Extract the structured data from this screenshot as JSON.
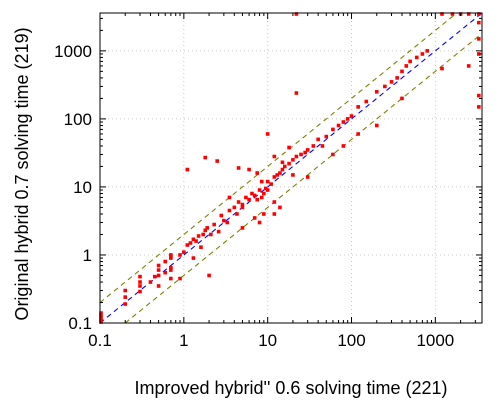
{
  "chart_data": {
    "type": "scatter",
    "xlabel": "Improved hybrid'' 0.6 solving time (221)",
    "ylabel": "Original hybrid 0.7 solving time (219)",
    "xscale": "log",
    "yscale": "log",
    "xlim": [
      0.1,
      3600
    ],
    "ylim": [
      0.1,
      3600
    ],
    "xticks": [
      0.1,
      1,
      10,
      100,
      1000
    ],
    "yticks": [
      0.1,
      1,
      10,
      100,
      1000
    ],
    "xtick_labels": [
      "0.1",
      "1",
      "10",
      "100",
      "1000"
    ],
    "ytick_labels": [
      "0.1",
      "1",
      "10",
      "100",
      "1000"
    ],
    "grid": true,
    "legend": "none",
    "colors": {
      "points": "#ff0000",
      "diagonal": "#0000ff",
      "band": "#808000",
      "grid": "#c8c8c8",
      "frame": "#000000"
    },
    "reference_lines": [
      {
        "style": "dashed",
        "color": "blue",
        "factor": 1
      },
      {
        "style": "dashed",
        "color": "olive",
        "factor": 2
      },
      {
        "style": "dashed",
        "color": "olive",
        "factor": 0.5
      }
    ],
    "points": [
      [
        0.1,
        0.1
      ],
      [
        0.1,
        0.11
      ],
      [
        0.1,
        0.12
      ],
      [
        0.1,
        0.13
      ],
      [
        0.1,
        0.14
      ],
      [
        0.2,
        0.19
      ],
      [
        0.2,
        0.24
      ],
      [
        0.2,
        0.3
      ],
      [
        0.3,
        0.29
      ],
      [
        0.3,
        0.35
      ],
      [
        0.3,
        0.4
      ],
      [
        0.3,
        0.48
      ],
      [
        0.4,
        0.4
      ],
      [
        0.45,
        0.48
      ],
      [
        0.5,
        0.5
      ],
      [
        0.5,
        0.6
      ],
      [
        0.5,
        0.7
      ],
      [
        0.6,
        0.55
      ],
      [
        0.6,
        0.8
      ],
      [
        0.7,
        0.6
      ],
      [
        0.7,
        0.65
      ],
      [
        0.7,
        0.9
      ],
      [
        0.7,
        1.0
      ],
      [
        0.7,
        0.95
      ],
      [
        0.9,
        1.0
      ],
      [
        1.0,
        1.1
      ],
      [
        1.1,
        1.4
      ],
      [
        1.2,
        1.5
      ],
      [
        1.3,
        1.7
      ],
      [
        1.4,
        1.6
      ],
      [
        1.5,
        1.9
      ],
      [
        1.6,
        1.3
      ],
      [
        1.7,
        2.0
      ],
      [
        1.8,
        2.3
      ],
      [
        1.9,
        2.5
      ],
      [
        2.0,
        0.5
      ],
      [
        2.1,
        2.0
      ],
      [
        2.3,
        2.8
      ],
      [
        2.6,
        2.2
      ],
      [
        2.8,
        3.8
      ],
      [
        3.0,
        3.2
      ],
      [
        3.3,
        3.0
      ],
      [
        3.5,
        4.5
      ],
      [
        4.0,
        5.0
      ],
      [
        4.3,
        4.0
      ],
      [
        4.5,
        6.0
      ],
      [
        5.0,
        5.5
      ],
      [
        5.5,
        7.0
      ],
      [
        6.0,
        6.5
      ],
      [
        6.5,
        8.0
      ],
      [
        7.0,
        7.5
      ],
      [
        7.5,
        6.5
      ],
      [
        8.0,
        9.0
      ],
      [
        8.5,
        7.0
      ],
      [
        9.0,
        8.0
      ],
      [
        9.5,
        9.5
      ],
      [
        10,
        9
      ],
      [
        10,
        12
      ],
      [
        11,
        11
      ],
      [
        12,
        14
      ],
      [
        13,
        15
      ],
      [
        14,
        16
      ],
      [
        15,
        18
      ],
      [
        16,
        20
      ],
      [
        18,
        22
      ],
      [
        20,
        25
      ],
      [
        22,
        28
      ],
      [
        25,
        30
      ],
      [
        28,
        32
      ],
      [
        30,
        35
      ],
      [
        35,
        40
      ],
      [
        40,
        50
      ],
      [
        45,
        40
      ],
      [
        50,
        55
      ],
      [
        60,
        70
      ],
      [
        70,
        80
      ],
      [
        80,
        90
      ],
      [
        90,
        100
      ],
      [
        100,
        110
      ],
      [
        120,
        150
      ],
      [
        150,
        180
      ],
      [
        200,
        250
      ],
      [
        250,
        300
      ],
      [
        300,
        350
      ],
      [
        350,
        400
      ],
      [
        400,
        500
      ],
      [
        450,
        600
      ],
      [
        500,
        700
      ],
      [
        600,
        800
      ],
      [
        700,
        900
      ],
      [
        800,
        1000
      ],
      [
        1.1,
        18
      ],
      [
        1.8,
        27
      ],
      [
        2.5,
        24
      ],
      [
        3.5,
        7
      ],
      [
        4.5,
        19
      ],
      [
        5,
        5
      ],
      [
        6,
        18
      ],
      [
        7.5,
        16
      ],
      [
        8.5,
        12
      ],
      [
        10,
        60
      ],
      [
        12,
        28
      ],
      [
        15,
        23
      ],
      [
        18,
        38
      ],
      [
        20,
        15
      ],
      [
        22,
        240
      ],
      [
        14,
        5
      ],
      [
        12,
        6
      ],
      [
        9,
        4
      ],
      [
        0.9,
        0.45
      ],
      [
        0.7,
        0.45
      ],
      [
        0.5,
        0.35
      ],
      [
        1.3,
        0.9
      ],
      [
        5,
        2.5
      ],
      [
        7,
        3.5
      ],
      [
        8,
        3
      ],
      [
        12,
        4
      ],
      [
        30,
        14
      ],
      [
        60,
        30
      ],
      [
        80,
        40
      ],
      [
        120,
        60
      ],
      [
        200,
        80
      ],
      [
        400,
        200
      ],
      [
        1200,
        550
      ],
      [
        2500,
        600
      ],
      [
        3300,
        150
      ],
      [
        3300,
        220
      ],
      [
        22,
        3600
      ],
      [
        1200,
        3600
      ],
      [
        1600,
        3600
      ],
      [
        2000,
        3600
      ],
      [
        2500,
        3600
      ],
      [
        3300,
        3600
      ],
      [
        3300,
        2600
      ],
      [
        3300,
        1500
      ],
      [
        3300,
        900
      ]
    ]
  }
}
